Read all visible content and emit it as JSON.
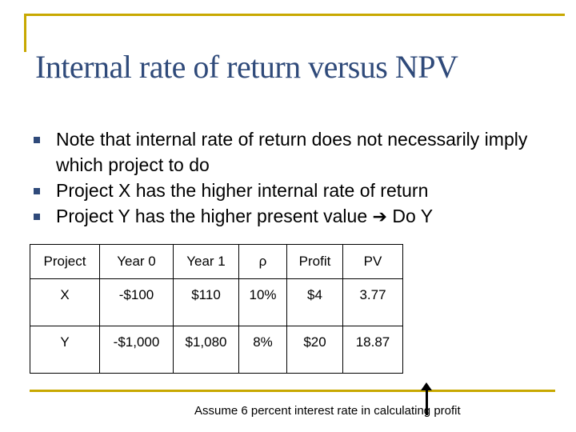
{
  "slide": {
    "title": "Internal rate of return versus NPV",
    "bullets": [
      "Note that internal rate of return does not necessarily imply which project to do",
      "Project X has the higher internal rate of return",
      "Project Y has the higher present value"
    ],
    "bullet3_suffix": "Do Y"
  },
  "table": {
    "headers": [
      "Project",
      "Year 0",
      "Year 1",
      "ρ",
      "Profit",
      "PV"
    ],
    "rows": [
      [
        "X",
        "-$100",
        "$110",
        "10%",
        "$4",
        "3.77"
      ],
      [
        "Y",
        "-$1,000",
        "$1,080",
        "8%",
        "$20",
        "18.87"
      ]
    ]
  },
  "footnote": "Assume 6 percent interest rate in calculating profit",
  "colors": {
    "title": "#2f4a7a",
    "accent_rule": "#c8a800",
    "bullet": "#2f4a7a"
  }
}
